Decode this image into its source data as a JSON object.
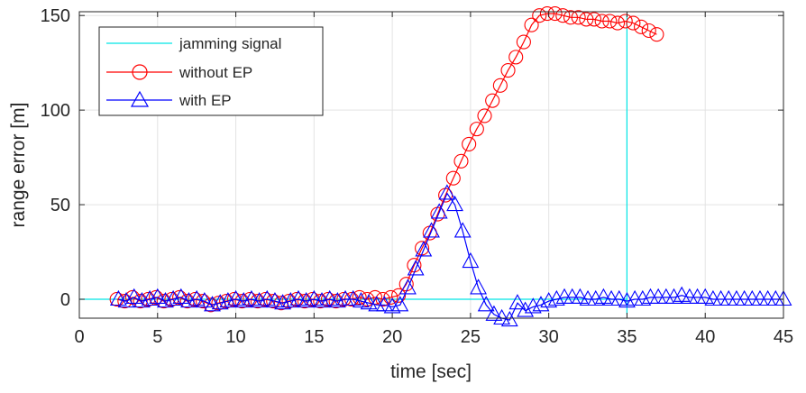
{
  "chart_data": {
    "type": "line",
    "title": "",
    "xlabel": "time [sec]",
    "ylabel": "range error [m]",
    "xlim": [
      0,
      45
    ],
    "ylim": [
      -10,
      152
    ],
    "xticks": [
      0,
      5,
      10,
      15,
      20,
      25,
      30,
      35,
      40,
      45
    ],
    "yticks": [
      0,
      50,
      100,
      150
    ],
    "xtick_labels": [
      "0",
      "5",
      "10",
      "15",
      "20",
      "25",
      "30",
      "35",
      "40",
      "45"
    ],
    "ytick_labels": [
      "0",
      "50",
      "100",
      "150"
    ],
    "grid": true,
    "legend_position": "top-left",
    "series": [
      {
        "name": "jamming signal",
        "marker": "none",
        "color": "#00e5e5",
        "x": [
          0,
          20,
          35,
          35,
          35
        ],
        "y": [
          0,
          0,
          0,
          150,
          -8
        ]
      },
      {
        "name": "without EP",
        "marker": "circle",
        "color": "#ff0000",
        "x": [
          2.4,
          2.9,
          3.4,
          3.9,
          4.4,
          4.9,
          5.4,
          5.9,
          6.4,
          6.9,
          7.4,
          7.9,
          8.4,
          8.9,
          9.4,
          9.9,
          10.4,
          10.9,
          11.4,
          11.9,
          12.4,
          12.9,
          13.4,
          13.9,
          14.4,
          14.9,
          15.4,
          15.9,
          16.4,
          16.9,
          17.4,
          17.9,
          18.4,
          18.9,
          19.4,
          19.9,
          20.4,
          20.9,
          21.4,
          21.9,
          22.4,
          22.9,
          23.4,
          23.9,
          24.4,
          24.9,
          25.4,
          25.9,
          26.4,
          26.9,
          27.4,
          27.9,
          28.4,
          28.9,
          29.4,
          29.9,
          30.4,
          30.9,
          31.4,
          31.9,
          32.4,
          32.9,
          33.4,
          33.9,
          34.4,
          34.9,
          35.4,
          35.9,
          36.4,
          36.9
        ],
        "y": [
          0,
          -1,
          1,
          -1,
          0,
          1,
          -1,
          0,
          1,
          -1,
          0,
          -1,
          -3,
          -2,
          -1,
          0,
          -1,
          0,
          -1,
          0,
          -1,
          -2,
          -1,
          0,
          -1,
          0,
          -1,
          0,
          -1,
          0,
          0,
          1,
          0,
          1,
          0,
          1,
          2,
          8,
          18,
          27,
          35,
          45,
          55,
          64,
          73,
          82,
          90,
          97,
          105,
          113,
          121,
          128,
          136,
          145,
          150,
          151,
          151,
          150,
          149,
          149,
          148,
          148,
          147,
          147,
          146,
          147,
          146,
          144,
          142,
          140
        ]
      },
      {
        "name": "with EP",
        "marker": "triangle",
        "color": "#0000ff",
        "x": [
          2.5,
          3.0,
          3.5,
          4.0,
          4.5,
          5.0,
          5.5,
          6.0,
          6.5,
          7.0,
          7.5,
          8.0,
          8.5,
          9.0,
          9.5,
          10.0,
          10.5,
          11.0,
          11.5,
          12.0,
          12.5,
          13.0,
          13.5,
          14.0,
          14.5,
          15.0,
          15.5,
          16.0,
          16.5,
          17.0,
          17.5,
          18.0,
          18.5,
          19.0,
          19.5,
          20.0,
          20.5,
          21.0,
          21.5,
          22.0,
          22.5,
          23.0,
          23.5,
          24.0,
          24.5,
          25.0,
          25.5,
          26.0,
          26.5,
          27.0,
          27.5,
          28.0,
          28.5,
          29.0,
          29.5,
          30.0,
          30.5,
          31.0,
          31.5,
          32.0,
          32.5,
          33.0,
          33.5,
          34.0,
          34.5,
          35.0,
          35.5,
          36.0,
          36.5,
          37.0,
          37.5,
          38.0,
          38.5,
          39.0,
          39.5,
          40.0,
          40.5,
          41.0,
          41.5,
          42.0,
          42.5,
          43.0,
          43.5,
          44.0,
          44.5,
          45.0
        ],
        "y": [
          0,
          -1,
          1,
          -1,
          0,
          1,
          -1,
          0,
          1,
          -1,
          0,
          -1,
          -3,
          -2,
          -1,
          0,
          -1,
          0,
          -1,
          0,
          -1,
          -2,
          -1,
          0,
          -1,
          0,
          -1,
          0,
          -1,
          0,
          0,
          -1,
          -2,
          -3,
          -3,
          -4,
          -3,
          6,
          16,
          26,
          36,
          46,
          56,
          50,
          36,
          20,
          6,
          -3,
          -8,
          -10,
          -11,
          -2,
          -6,
          -4,
          -3,
          -1,
          0,
          1,
          1,
          1,
          0,
          0,
          1,
          0,
          0,
          -1,
          0,
          0,
          1,
          1,
          1,
          1,
          2,
          1,
          1,
          1,
          0,
          0,
          0,
          0,
          0,
          0,
          0,
          0,
          0,
          0
        ]
      }
    ]
  }
}
